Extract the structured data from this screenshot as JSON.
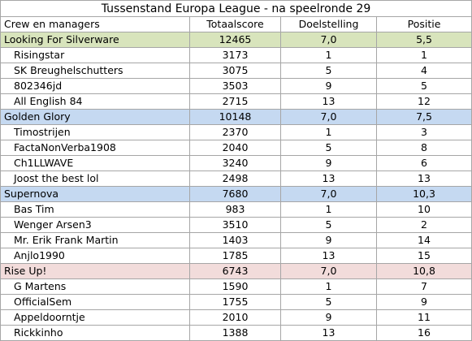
{
  "title": "Tussenstand Europa League  - na speelronde 29",
  "headers": [
    "Crew en managers",
    "Totaalscore",
    "Doelstelling",
    "Positie"
  ],
  "teams": [
    {
      "name": "Looking For Silverware",
      "total": "12465",
      "doel": "7,0",
      "pos": "5,5",
      "color": "#d8e4bc",
      "members": [
        {
          "name": "Risingstar",
          "total": "3173",
          "doel": "1",
          "pos": "1"
        },
        {
          "name": "SK Breughelschutters",
          "total": "3075",
          "doel": "5",
          "pos": "4"
        },
        {
          "name": "802346jd",
          "total": "3503",
          "doel": "9",
          "pos": "5"
        },
        {
          "name": "All English 84",
          "total": "2715",
          "doel": "13",
          "pos": "12"
        }
      ]
    },
    {
      "name": "Golden Glory",
      "total": "10148",
      "doel": "7,0",
      "pos": "7,5",
      "color": "#c5d9f1",
      "members": [
        {
          "name": "Timostrijen",
          "total": "2370",
          "doel": "1",
          "pos": "3"
        },
        {
          "name": "FactaNonVerba1908",
          "total": "2040",
          "doel": "5",
          "pos": "8"
        },
        {
          "name": "Ch1LLWAVE",
          "total": "3240",
          "doel": "9",
          "pos": "6"
        },
        {
          "name": "Joost the best lol",
          "total": "2498",
          "doel": "13",
          "pos": "13"
        }
      ]
    },
    {
      "name": "Supernova",
      "total": "7680",
      "doel": "7,0",
      "pos": "10,3",
      "color": "#c5d9f1",
      "members": [
        {
          "name": "Bas Tim",
          "total": "983",
          "doel": "1",
          "pos": "10"
        },
        {
          "name": "Wenger Arsen3",
          "total": "3510",
          "doel": "5",
          "pos": "2"
        },
        {
          "name": "Mr. Erik Frank Martin",
          "total": "1403",
          "doel": "9",
          "pos": "14"
        },
        {
          "name": "Anjlo1990",
          "total": "1785",
          "doel": "13",
          "pos": "15"
        }
      ]
    },
    {
      "name": "Rise Up!",
      "total": "6743",
      "doel": "7,0",
      "pos": "10,8",
      "color": "#f2dcdb",
      "members": [
        {
          "name": "G Martens",
          "total": "1590",
          "doel": "1",
          "pos": "7"
        },
        {
          "name": "OfficialSem",
          "total": "1755",
          "doel": "5",
          "pos": "9"
        },
        {
          "name": "Appeldoorntje",
          "total": "2010",
          "doel": "9",
          "pos": "11"
        },
        {
          "name": "Rickkinho",
          "total": "1388",
          "doel": "13",
          "pos": "16"
        }
      ]
    }
  ]
}
